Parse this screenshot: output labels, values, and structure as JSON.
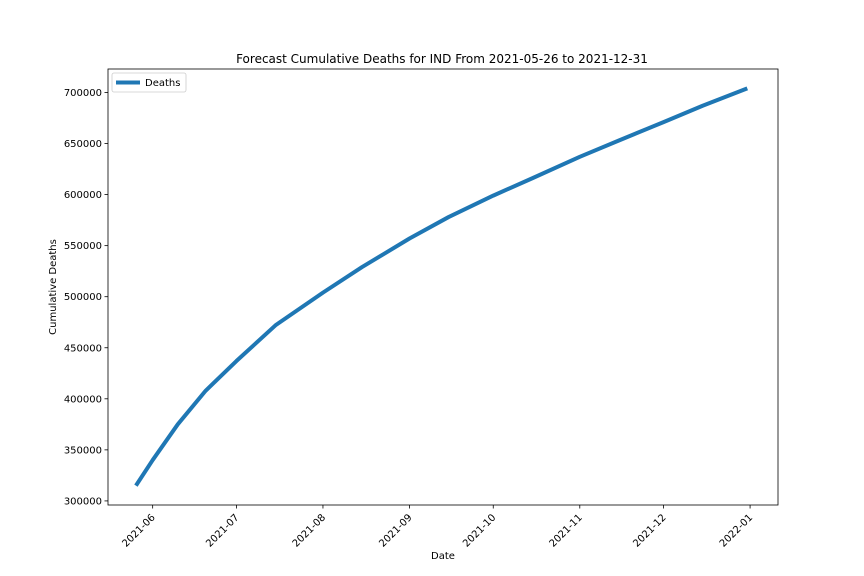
{
  "chart_data": {
    "type": "line",
    "title": "Forecast Cumulative Deaths for IND From 2021-05-26 to 2021-12-31",
    "xlabel": "Date",
    "ylabel": "Cumulative Deaths",
    "x_range": [
      "2021-05-16",
      "2022-01-11"
    ],
    "ylim": [
      296000,
      723000
    ],
    "x_ticks": [
      {
        "date": "2021-06-01",
        "label": "2021-06"
      },
      {
        "date": "2021-07-01",
        "label": "2021-07"
      },
      {
        "date": "2021-08-01",
        "label": "2021-08"
      },
      {
        "date": "2021-09-01",
        "label": "2021-09"
      },
      {
        "date": "2021-10-01",
        "label": "2021-10"
      },
      {
        "date": "2021-11-01",
        "label": "2021-11"
      },
      {
        "date": "2021-12-01",
        "label": "2021-12"
      },
      {
        "date": "2022-01-01",
        "label": "2022-01"
      }
    ],
    "y_ticks": [
      300000,
      350000,
      400000,
      450000,
      500000,
      550000,
      600000,
      650000,
      700000
    ],
    "grid": false,
    "legend_placement": "top-left",
    "series": [
      {
        "name": "Deaths",
        "color": "#1f77b4",
        "points": [
          {
            "x": "2021-05-26",
            "y": 315000
          },
          {
            "x": "2021-06-01",
            "y": 340000
          },
          {
            "x": "2021-06-10",
            "y": 375000
          },
          {
            "x": "2021-06-20",
            "y": 408000
          },
          {
            "x": "2021-07-01",
            "y": 437000
          },
          {
            "x": "2021-07-15",
            "y": 472000
          },
          {
            "x": "2021-08-01",
            "y": 504000
          },
          {
            "x": "2021-08-15",
            "y": 529000
          },
          {
            "x": "2021-09-01",
            "y": 557000
          },
          {
            "x": "2021-09-15",
            "y": 578000
          },
          {
            "x": "2021-10-01",
            "y": 599000
          },
          {
            "x": "2021-10-15",
            "y": 616000
          },
          {
            "x": "2021-11-01",
            "y": 637000
          },
          {
            "x": "2021-11-15",
            "y": 653000
          },
          {
            "x": "2021-12-01",
            "y": 671000
          },
          {
            "x": "2021-12-15",
            "y": 687000
          },
          {
            "x": "2021-12-31",
            "y": 704000
          }
        ]
      }
    ]
  }
}
